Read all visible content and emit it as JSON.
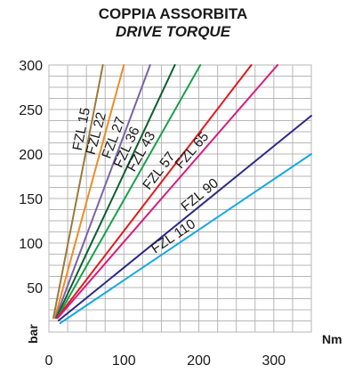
{
  "chart_data": {
    "type": "line",
    "title": "COPPIA ASSORBITA",
    "subtitle": "DRIVE TORQUE",
    "xlabel": "Nm",
    "ylabel": "bar",
    "xlim": [
      0,
      350
    ],
    "ylim": [
      0,
      300
    ],
    "xticks": [
      "0",
      "100",
      "200",
      "300"
    ],
    "yticks": [
      "50",
      "100",
      "150",
      "200",
      "250",
      "300"
    ],
    "grid": true,
    "series": [
      {
        "name": "FZL 15",
        "color": "#9a7b3c",
        "x": [
          6,
          72
        ],
        "y": [
          16,
          300
        ]
      },
      {
        "name": "FZL 22",
        "color": "#f08a25",
        "x": [
          8,
          100
        ],
        "y": [
          16,
          300
        ]
      },
      {
        "name": "FZL 27",
        "color": "#7a62a8",
        "x": [
          9,
          135
        ],
        "y": [
          16,
          300
        ]
      },
      {
        "name": "FZL 36",
        "color": "#0b5e2f",
        "x": [
          10,
          168
        ],
        "y": [
          16,
          300
        ]
      },
      {
        "name": "FZL 43",
        "color": "#1aa04a",
        "x": [
          11,
          202
        ],
        "y": [
          16,
          300
        ]
      },
      {
        "name": "FZL 57",
        "color": "#e3191c",
        "x": [
          11,
          270
        ],
        "y": [
          16,
          300
        ]
      },
      {
        "name": "FZL 65",
        "color": "#d81b7e",
        "x": [
          12,
          305
        ],
        "y": [
          16,
          300
        ]
      },
      {
        "name": "FZL 90",
        "color": "#2c2886",
        "x": [
          13,
          350
        ],
        "y": [
          13,
          243
        ]
      },
      {
        "name": "FZL 110",
        "color": "#18a8e0",
        "x": [
          15,
          350
        ],
        "y": [
          10,
          200
        ]
      }
    ]
  }
}
